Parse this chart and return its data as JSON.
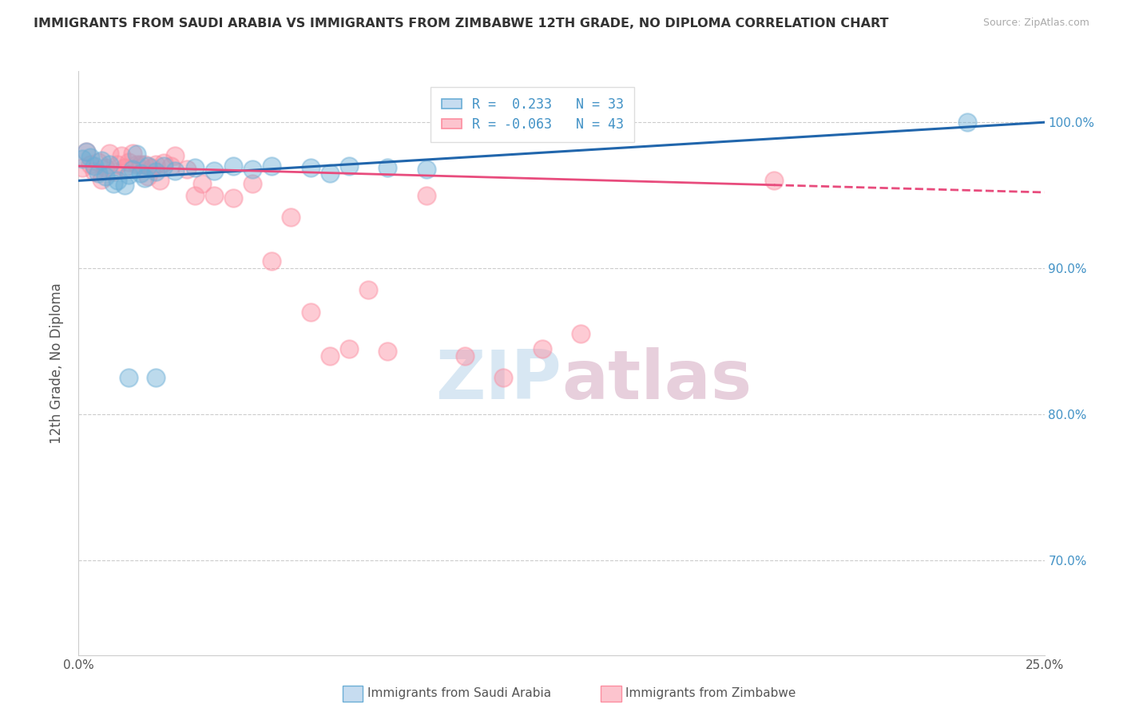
{
  "title": "IMMIGRANTS FROM SAUDI ARABIA VS IMMIGRANTS FROM ZIMBABWE 12TH GRADE, NO DIPLOMA CORRELATION CHART",
  "source": "Source: ZipAtlas.com",
  "ylabel": "12th Grade, No Diploma",
  "xmin": 0.0,
  "xmax": 0.25,
  "ymin": 0.635,
  "ymax": 1.035,
  "color_saudi": "#6baed6",
  "color_zimbabwe": "#fc8da0",
  "color_saudi_line": "#2166ac",
  "color_zimbabwe_line": "#e84c7d",
  "r_saudi": 0.233,
  "n_saudi": 33,
  "r_zimbabwe": -0.063,
  "n_zimbabwe": 43,
  "watermark_color": "#c8dff0",
  "saudi_x": [
    0.001,
    0.002,
    0.003,
    0.004,
    0.005,
    0.006,
    0.007,
    0.008,
    0.009,
    0.01,
    0.012,
    0.013,
    0.014,
    0.015,
    0.016,
    0.017,
    0.018,
    0.02,
    0.022,
    0.025,
    0.03,
    0.035,
    0.04,
    0.045,
    0.05,
    0.06,
    0.065,
    0.07,
    0.08,
    0.09,
    0.013,
    0.02,
    0.23
  ],
  "saudi_y": [
    0.975,
    0.98,
    0.976,
    0.97,
    0.965,
    0.974,
    0.963,
    0.971,
    0.958,
    0.96,
    0.957,
    0.964,
    0.968,
    0.978,
    0.965,
    0.962,
    0.97,
    0.966,
    0.97,
    0.967,
    0.969,
    0.967,
    0.97,
    0.968,
    0.97,
    0.969,
    0.965,
    0.97,
    0.969,
    0.968,
    0.825,
    0.825,
    1.0
  ],
  "zimbabwe_x": [
    0.001,
    0.002,
    0.003,
    0.004,
    0.005,
    0.006,
    0.007,
    0.008,
    0.009,
    0.01,
    0.011,
    0.012,
    0.013,
    0.014,
    0.015,
    0.016,
    0.017,
    0.018,
    0.019,
    0.02,
    0.021,
    0.022,
    0.024,
    0.025,
    0.028,
    0.03,
    0.032,
    0.035,
    0.04,
    0.045,
    0.05,
    0.055,
    0.06,
    0.065,
    0.07,
    0.075,
    0.08,
    0.09,
    0.1,
    0.11,
    0.12,
    0.13,
    0.18
  ],
  "zimbabwe_y": [
    0.969,
    0.98,
    0.971,
    0.966,
    0.973,
    0.961,
    0.969,
    0.979,
    0.966,
    0.971,
    0.977,
    0.969,
    0.973,
    0.979,
    0.971,
    0.971,
    0.971,
    0.963,
    0.969,
    0.971,
    0.96,
    0.972,
    0.97,
    0.977,
    0.968,
    0.95,
    0.958,
    0.95,
    0.948,
    0.958,
    0.905,
    0.935,
    0.87,
    0.84,
    0.845,
    0.885,
    0.843,
    0.95,
    0.84,
    0.825,
    0.845,
    0.855,
    0.96
  ],
  "trend_saudi_y0": 0.96,
  "trend_saudi_y1": 1.0,
  "trend_zimbabwe_y0": 0.97,
  "trend_zimbabwe_y1": 0.952,
  "trend_dashed_start": 0.18
}
